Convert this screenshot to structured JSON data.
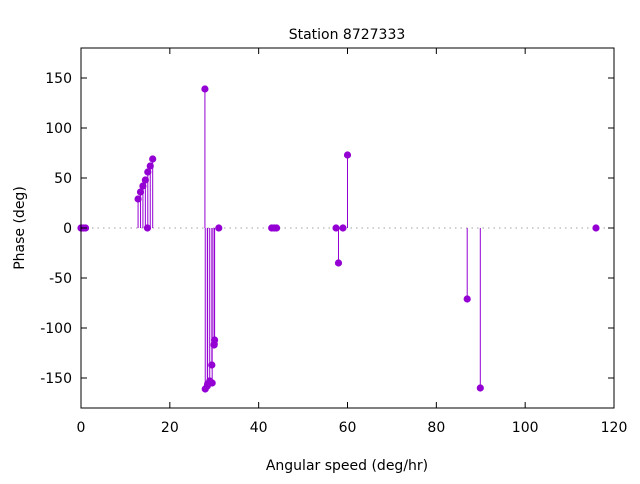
{
  "chart_data": {
    "type": "impulse-scatter",
    "title": "Station 8727333",
    "xlabel": "Angular speed (deg/hr)",
    "ylabel": "Phase (deg)",
    "xlim": [
      0,
      120
    ],
    "ylim": [
      -180,
      180
    ],
    "xticks": [
      0,
      20,
      40,
      60,
      80,
      100,
      120
    ],
    "yticks": [
      -150,
      -100,
      -50,
      0,
      50,
      100,
      150
    ],
    "grid": false,
    "zero_line": "dotted",
    "color": "#9400d3",
    "points": [
      {
        "x": 0.0,
        "y": 0
      },
      {
        "x": 0.04,
        "y": 0
      },
      {
        "x": 0.08,
        "y": 0
      },
      {
        "x": 0.54,
        "y": 0
      },
      {
        "x": 1.02,
        "y": 0
      },
      {
        "x": 12.85,
        "y": 29
      },
      {
        "x": 13.4,
        "y": 36
      },
      {
        "x": 13.94,
        "y": 42
      },
      {
        "x": 14.49,
        "y": 48
      },
      {
        "x": 14.96,
        "y": 0
      },
      {
        "x": 15.04,
        "y": 56
      },
      {
        "x": 15.59,
        "y": 62
      },
      {
        "x": 16.14,
        "y": 69
      },
      {
        "x": 27.9,
        "y": 139
      },
      {
        "x": 27.97,
        "y": -161
      },
      {
        "x": 28.44,
        "y": -158
      },
      {
        "x": 28.51,
        "y": -156
      },
      {
        "x": 28.98,
        "y": -153
      },
      {
        "x": 29.46,
        "y": -137
      },
      {
        "x": 29.53,
        "y": -155
      },
      {
        "x": 29.96,
        "y": -117
      },
      {
        "x": 30.0,
        "y": -116
      },
      {
        "x": 30.08,
        "y": -112
      },
      {
        "x": 31.02,
        "y": 0
      },
      {
        "x": 42.93,
        "y": 0
      },
      {
        "x": 43.48,
        "y": 0
      },
      {
        "x": 44.03,
        "y": 0
      },
      {
        "x": 57.42,
        "y": 0
      },
      {
        "x": 57.97,
        "y": -35
      },
      {
        "x": 58.98,
        "y": 0
      },
      {
        "x": 60.0,
        "y": 73
      },
      {
        "x": 86.95,
        "y": -71
      },
      {
        "x": 89.9,
        "y": -160
      },
      {
        "x": 115.94,
        "y": 0
      }
    ]
  }
}
